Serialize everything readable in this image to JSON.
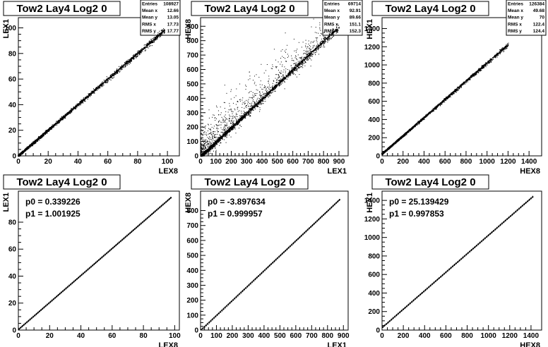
{
  "colors": {
    "background": "#ffffff",
    "ink": "#000000"
  },
  "chart_data": [
    {
      "type": "scatter",
      "title": "Tow2 Lay4 Log2 0",
      "xlabel": "LEX8",
      "ylabel": "LEX1",
      "xlim": [
        0,
        108
      ],
      "ylim": [
        0,
        108
      ],
      "xticks": [
        0,
        20,
        40,
        60,
        80,
        100
      ],
      "yticks": [
        0,
        20,
        40,
        60,
        80,
        100
      ],
      "trend": {
        "slope": 1.0,
        "intercept": 0.3,
        "x_range": [
          0,
          98
        ],
        "spread": 1.2,
        "outliers": 0
      },
      "stats": [
        {
          "label": "Entries",
          "value": "108927"
        },
        {
          "label": "Mean x",
          "value": "12.66"
        },
        {
          "label": "Mean y",
          "value": "13.05"
        },
        {
          "label": "RMS x",
          "value": "17.73"
        },
        {
          "label": "RMS y",
          "value": "17.77"
        }
      ]
    },
    {
      "type": "scatter",
      "title": "Tow2 Lay4 Log2 0",
      "xlabel": "LEX1",
      "ylabel": "HEX8",
      "xlim": [
        0,
        960
      ],
      "ylim": [
        0,
        960
      ],
      "xticks": [
        0,
        100,
        200,
        300,
        400,
        500,
        600,
        700,
        800,
        900
      ],
      "yticks": [
        0,
        100,
        200,
        300,
        400,
        500,
        600,
        700,
        800,
        900
      ],
      "trend": {
        "slope": 1.0,
        "intercept": -4,
        "x_range": [
          0,
          900
        ],
        "spread": 15,
        "outliers": 900
      },
      "stats": [
        {
          "label": "Entries",
          "value": "69714"
        },
        {
          "label": "Mean x",
          "value": "92.91"
        },
        {
          "label": "Mean y",
          "value": "89.66"
        },
        {
          "label": "RMS x",
          "value": "151.1"
        },
        {
          "label": "RMS y",
          "value": "152.3"
        }
      ]
    },
    {
      "type": "scatter",
      "title": "Tow2 Lay4 Log2 0",
      "xlabel": "HEX8",
      "ylabel": "HEX1",
      "xlim": [
        0,
        1520
      ],
      "ylim": [
        0,
        1520
      ],
      "xticks": [
        0,
        200,
        400,
        600,
        800,
        1000,
        1200,
        1400
      ],
      "yticks": [
        0,
        200,
        400,
        600,
        800,
        1000,
        1200,
        1400
      ],
      "trend": {
        "slope": 1.0,
        "intercept": 25,
        "x_range": [
          0,
          1200
        ],
        "spread": 12,
        "outliers": 0
      },
      "stats": [
        {
          "label": "Entries",
          "value": "126384"
        },
        {
          "label": "Mean x",
          "value": "49.68"
        },
        {
          "label": "Mean y",
          "value": "70"
        },
        {
          "label": "RMS x",
          "value": "122.4"
        },
        {
          "label": "RMS y",
          "value": "124.4"
        }
      ]
    },
    {
      "type": "line",
      "title": "Tow2 Lay4 Log2 0",
      "xlabel": "LEX8",
      "ylabel": "LEX1",
      "xlim": [
        0,
        103
      ],
      "ylim": [
        0,
        103
      ],
      "xticks": [
        0,
        20,
        40,
        60,
        80,
        100
      ],
      "yticks": [
        0,
        20,
        40,
        60,
        80
      ],
      "fit": {
        "p0": 0.339226,
        "p1": 1.001925,
        "x_range": [
          0,
          98
        ],
        "step": 1
      },
      "fit_labels": [
        "p0 = 0.339226",
        "p1 = 1.001925"
      ]
    },
    {
      "type": "line",
      "title": "Tow2 Lay4 Log2 0",
      "xlabel": "LEX1",
      "ylabel": "HEX8",
      "xlim": [
        0,
        930
      ],
      "ylim": [
        0,
        930
      ],
      "xticks": [
        0,
        100,
        200,
        300,
        400,
        500,
        600,
        700,
        800,
        900
      ],
      "yticks": [
        0,
        100,
        200,
        300,
        400,
        500,
        600,
        700,
        800
      ],
      "fit": {
        "p0": -3.897634,
        "p1": 0.999957,
        "x_range": [
          0,
          880
        ],
        "step": 10
      },
      "fit_labels": [
        "p0 = -3.897634",
        "p1 = 0.999957"
      ]
    },
    {
      "type": "line",
      "title": "Tow2 Lay4 Log2 0",
      "xlabel": "HEX8",
      "ylabel": "HEX1",
      "xlim": [
        0,
        1500
      ],
      "ylim": [
        0,
        1500
      ],
      "xticks": [
        0,
        200,
        400,
        600,
        800,
        1000,
        1200,
        1400
      ],
      "yticks": [
        0,
        200,
        400,
        600,
        800,
        1000,
        1200,
        1400
      ],
      "fit": {
        "p0": 25.139429,
        "p1": 0.997853,
        "x_range": [
          0,
          1420
        ],
        "step": 16
      },
      "fit_labels": [
        "p0 = 25.139429",
        "p1 = 0.997853"
      ]
    }
  ]
}
